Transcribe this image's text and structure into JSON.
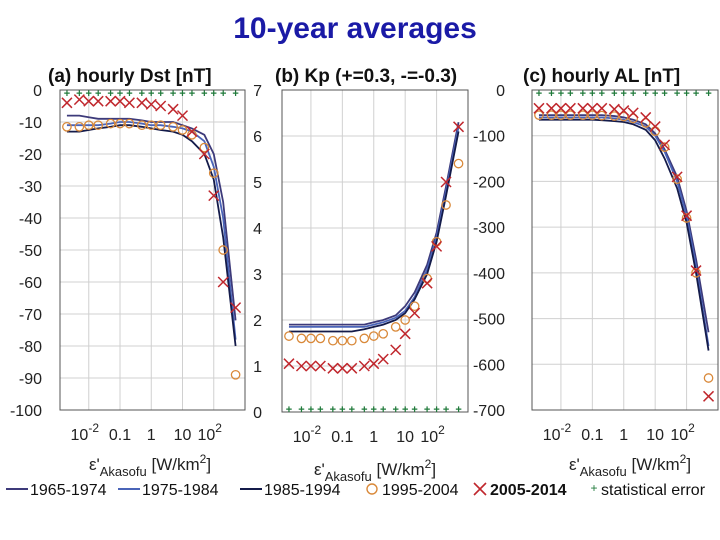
{
  "slide_title": "10-year averages",
  "x_axis": {
    "label_main": "ε'",
    "label_sub": "Akasofu",
    "label_unit": "[W/km",
    "label_unit_sup": "2",
    "label_unit_close": "]",
    "ticks": [
      {
        "value": 0.01,
        "base": "10",
        "exp": "-2",
        "label": ""
      },
      {
        "value": 0.1,
        "base": "",
        "exp": "",
        "label": "0.1"
      },
      {
        "value": 1,
        "base": "",
        "exp": "",
        "label": "1"
      },
      {
        "value": 10,
        "base": "",
        "exp": "",
        "label": "10"
      },
      {
        "value": 100,
        "base": "10",
        "exp": "2",
        "label": ""
      }
    ]
  },
  "legend": [
    {
      "label": "1965-1974",
      "kind": "line",
      "color": "#3d3a7a"
    },
    {
      "label": "1975-1984",
      "kind": "line",
      "color": "#4a64b8"
    },
    {
      "label": "1985-1994",
      "kind": "line",
      "color": "#141b4a"
    },
    {
      "label": "1995-2004",
      "kind": "circle",
      "color": "#d9893a"
    },
    {
      "label": "2005-2014",
      "kind": "cross",
      "color": "#c0272d"
    },
    {
      "label": "statistical error",
      "kind": "plus",
      "color": "#1f7a3a"
    }
  ],
  "chart_data": [
    {
      "type": "line",
      "title": "(a) hourly Dst [nT]",
      "xscale": "log",
      "xlim": [
        0.0012,
        1000
      ],
      "ylim": [
        -100,
        0
      ],
      "yticks": [
        0,
        -10,
        -20,
        -30,
        -40,
        -50,
        -60,
        -70,
        -80,
        -90,
        -100
      ],
      "grid": true,
      "x": [
        0.002,
        0.005,
        0.01,
        0.02,
        0.05,
        0.1,
        0.2,
        0.5,
        1,
        2,
        5,
        10,
        20,
        50,
        100,
        200,
        500
      ],
      "series": [
        {
          "name": "1965-1974",
          "values": [
            -8,
            -8,
            -8.5,
            -9,
            -9,
            -9,
            -9,
            -9.5,
            -10,
            -10,
            -10,
            -11,
            -12,
            -14,
            -20,
            -35,
            -72
          ]
        },
        {
          "name": "1975-1984",
          "values": [
            -11,
            -11,
            -11,
            -11,
            -10.5,
            -10,
            -10,
            -10.5,
            -11,
            -11,
            -11.5,
            -12,
            -13,
            -16,
            -24,
            -40,
            -78
          ]
        },
        {
          "name": "1985-1994",
          "values": [
            -13,
            -13,
            -12.5,
            -12,
            -11.5,
            -11,
            -11,
            -11.5,
            -12,
            -12.5,
            -13,
            -14,
            -16,
            -20,
            -28,
            -46,
            -80
          ]
        },
        {
          "name": "1995-2004",
          "values": [
            -11.5,
            -11.5,
            -11,
            -11,
            -10.5,
            -10.5,
            -10.5,
            -11,
            -11,
            -11,
            -11.5,
            -12.5,
            -14,
            -18,
            -26,
            -50,
            -89
          ]
        },
        {
          "name": "2005-2014",
          "values": [
            -4,
            -3,
            -3.5,
            -3.5,
            -3.5,
            -3.5,
            -4,
            -4,
            -4.5,
            -5,
            -6,
            -8,
            -13,
            -20,
            -33,
            -60,
            -68
          ]
        }
      ],
      "statistical_error": [
        0.5,
        1,
        1.5,
        2
      ]
    },
    {
      "type": "line",
      "title": "(b) Kp (+=0.3, -=-0.3)",
      "xscale": "log",
      "xlim": [
        0.0012,
        1000
      ],
      "ylim": [
        0,
        7
      ],
      "yticks": [
        0,
        1,
        2,
        3,
        4,
        5,
        6,
        7
      ],
      "grid": true,
      "x": [
        0.002,
        0.005,
        0.01,
        0.02,
        0.05,
        0.1,
        0.2,
        0.5,
        1,
        2,
        5,
        10,
        20,
        50,
        100,
        200,
        500
      ],
      "series": [
        {
          "name": "1965-1974",
          "values": [
            1.9,
            1.9,
            1.9,
            1.9,
            1.9,
            1.9,
            1.9,
            1.9,
            1.95,
            2.0,
            2.1,
            2.3,
            2.6,
            3.2,
            3.9,
            4.9,
            6.3
          ]
        },
        {
          "name": "1975-1984",
          "values": [
            1.85,
            1.85,
            1.85,
            1.85,
            1.85,
            1.85,
            1.85,
            1.85,
            1.9,
            1.95,
            2.05,
            2.2,
            2.5,
            3.1,
            3.8,
            4.8,
            6.2
          ]
        },
        {
          "name": "1985-1994",
          "values": [
            1.75,
            1.75,
            1.75,
            1.75,
            1.75,
            1.75,
            1.75,
            1.8,
            1.85,
            1.9,
            2.0,
            2.15,
            2.45,
            3.0,
            3.7,
            4.7,
            6.1
          ]
        },
        {
          "name": "1995-2004",
          "values": [
            1.65,
            1.6,
            1.6,
            1.6,
            1.55,
            1.55,
            1.55,
            1.6,
            1.65,
            1.7,
            1.85,
            2.0,
            2.3,
            2.9,
            3.7,
            4.5,
            5.4
          ]
        },
        {
          "name": "2005-2014",
          "values": [
            1.05,
            1.0,
            1.0,
            1.0,
            0.95,
            0.95,
            0.95,
            1.0,
            1.05,
            1.15,
            1.35,
            1.7,
            2.15,
            2.8,
            3.6,
            5.0,
            6.2
          ]
        }
      ],
      "statistical_error": [
        0.05,
        0.08,
        0.1,
        0.12
      ]
    },
    {
      "type": "line",
      "title": "(c) hourly AL [nT]",
      "xscale": "log",
      "xlim": [
        0.0012,
        1000
      ],
      "ylim": [
        -700,
        0
      ],
      "yticks": [
        0,
        -100,
        -200,
        -300,
        -400,
        -500,
        -600,
        -700
      ],
      "grid": true,
      "x": [
        0.002,
        0.005,
        0.01,
        0.02,
        0.05,
        0.1,
        0.2,
        0.5,
        1,
        2,
        5,
        10,
        20,
        50,
        100,
        200,
        500
      ],
      "series": [
        {
          "name": "1965-1974",
          "values": [
            -55,
            -55,
            -55,
            -55,
            -55,
            -55,
            -55,
            -57,
            -60,
            -65,
            -75,
            -95,
            -130,
            -190,
            -265,
            -370,
            -530
          ]
        },
        {
          "name": "1975-1984",
          "values": [
            -60,
            -60,
            -60,
            -60,
            -60,
            -60,
            -60,
            -62,
            -65,
            -70,
            -80,
            -100,
            -135,
            -200,
            -275,
            -385,
            -560
          ]
        },
        {
          "name": "1985-1994",
          "values": [
            -65,
            -65,
            -65,
            -65,
            -65,
            -65,
            -66,
            -68,
            -70,
            -75,
            -87,
            -110,
            -150,
            -215,
            -290,
            -400,
            -570
          ]
        },
        {
          "name": "1995-2004",
          "values": [
            -55,
            -55,
            -55,
            -55,
            -55,
            -55,
            -56,
            -57,
            -58,
            -62,
            -72,
            -90,
            -125,
            -195,
            -280,
            -400,
            -630
          ]
        },
        {
          "name": "2005-2014",
          "values": [
            -40,
            -40,
            -40,
            -40,
            -40,
            -40,
            -40,
            -42,
            -45,
            -50,
            -60,
            -80,
            -120,
            -190,
            -275,
            -395,
            -670
          ]
        }
      ],
      "statistical_error": [
        3,
        5,
        8,
        12
      ]
    }
  ]
}
